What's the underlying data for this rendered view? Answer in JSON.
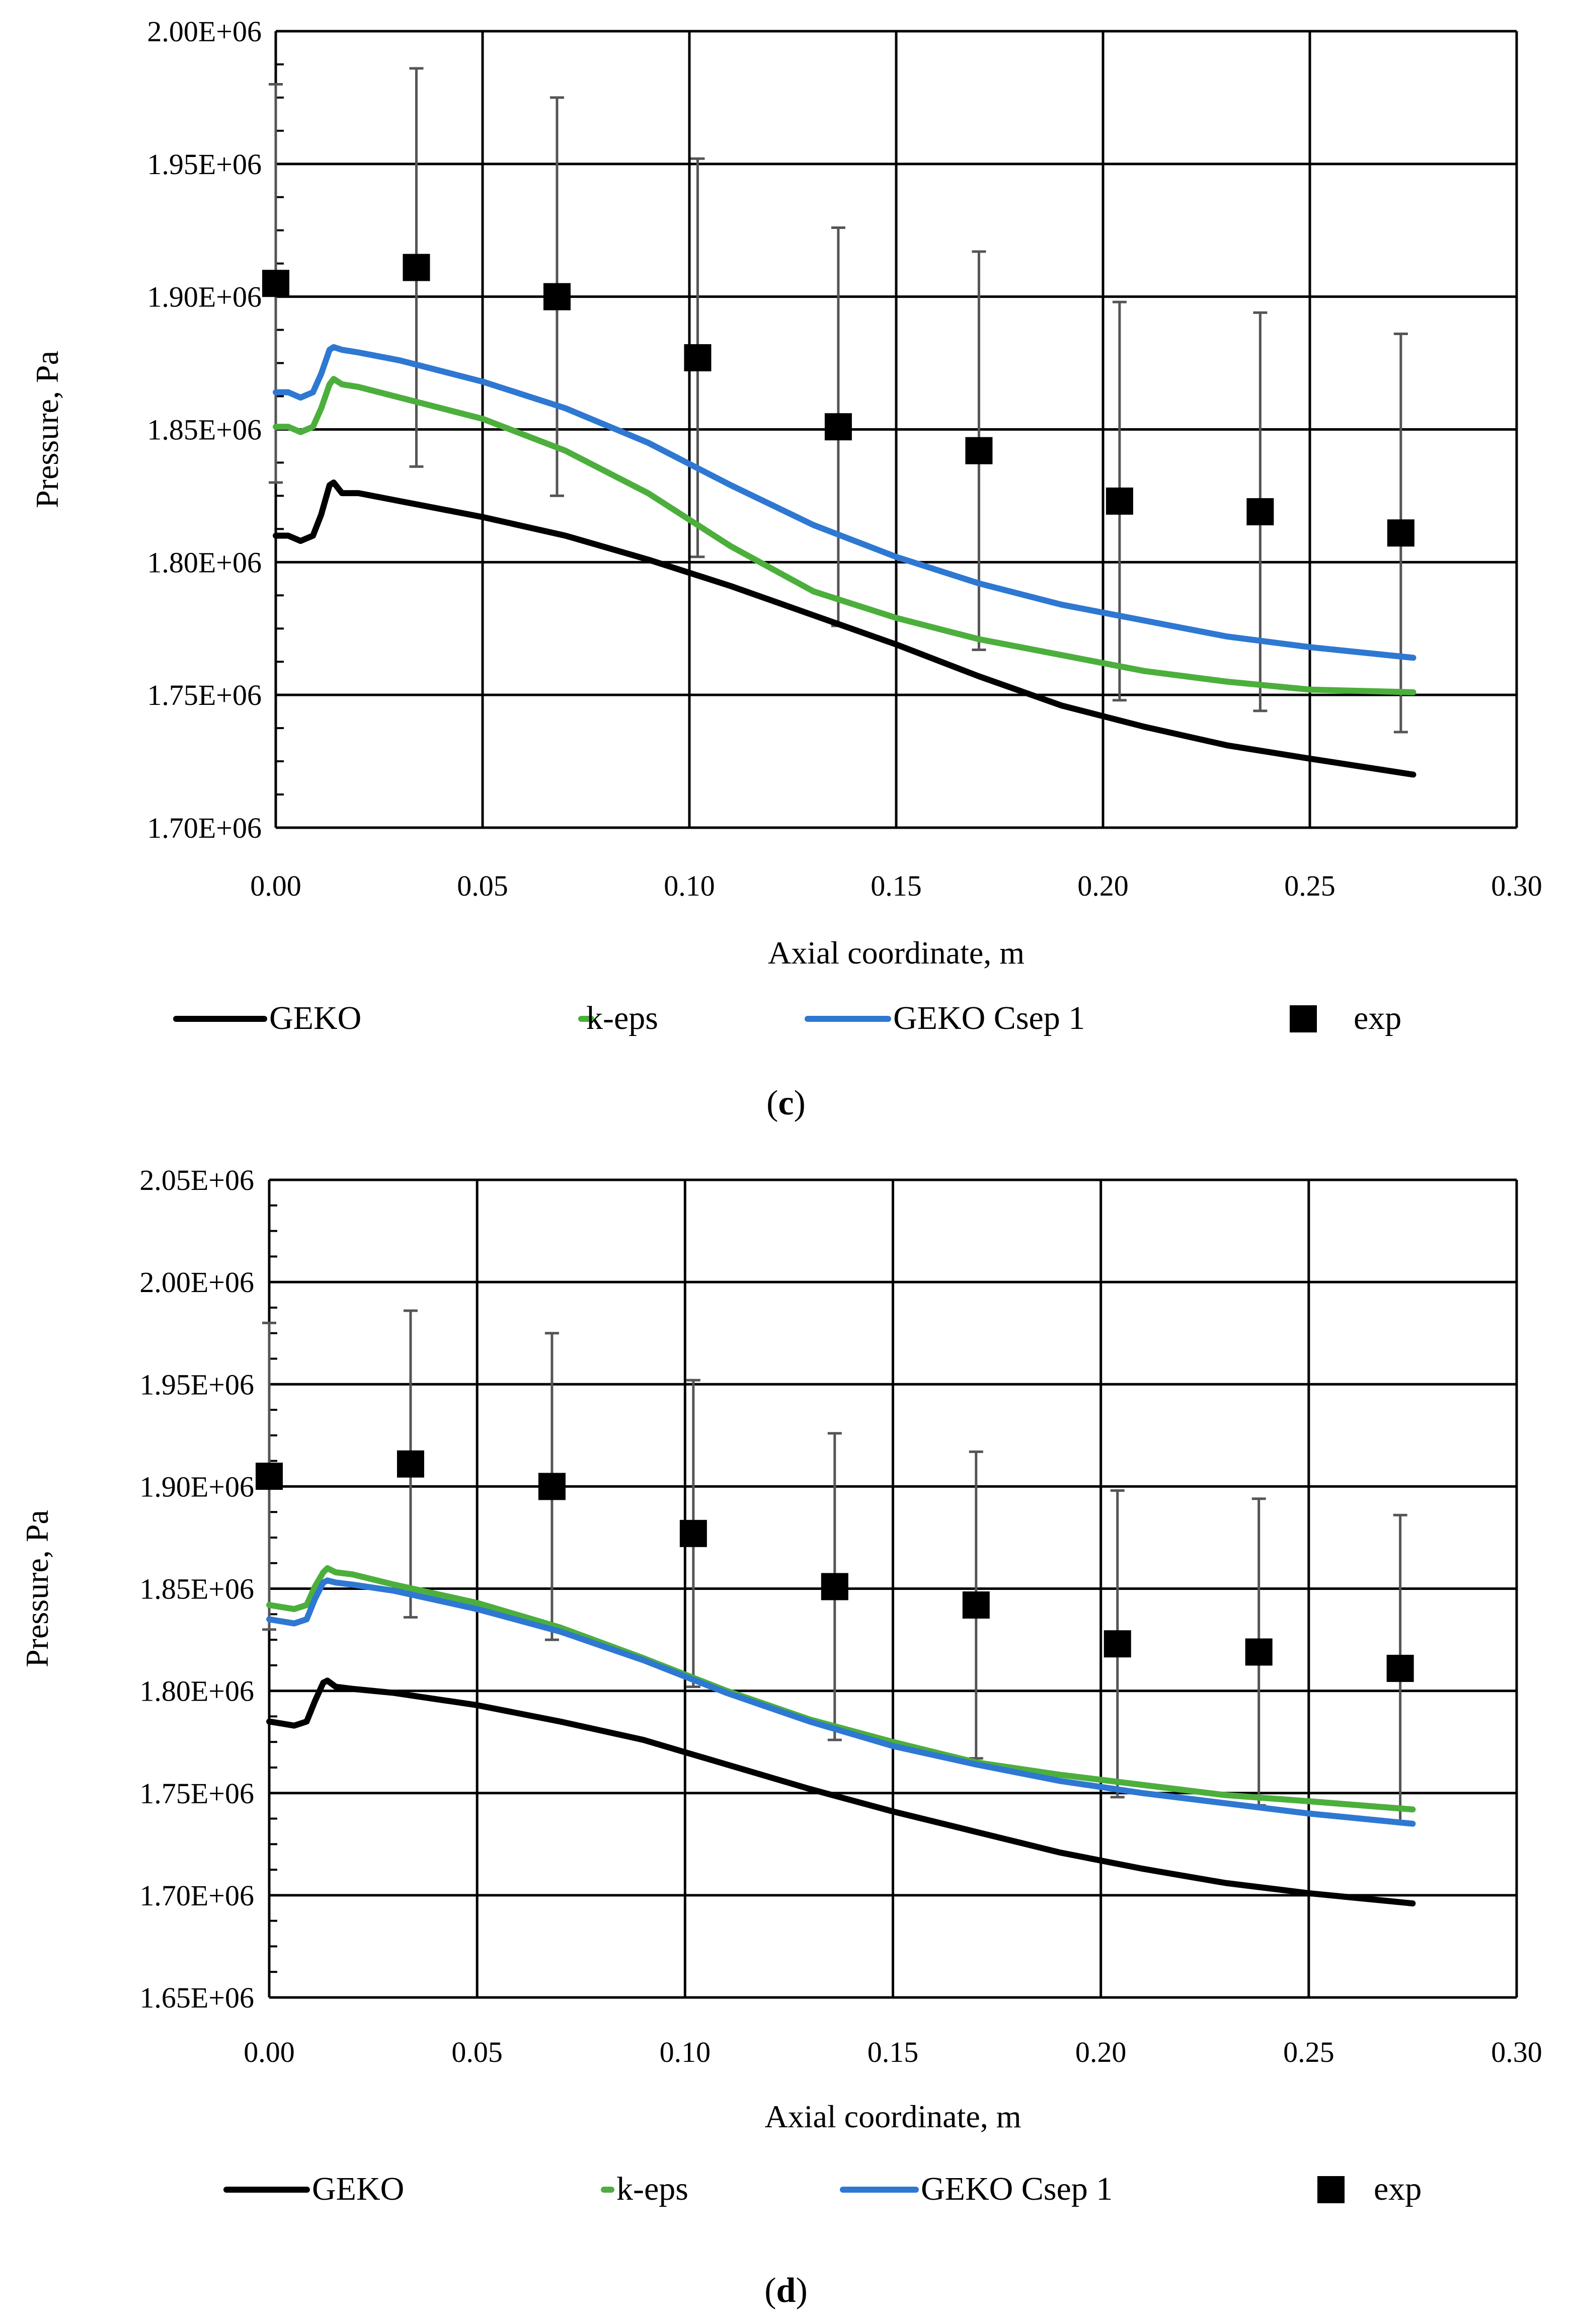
{
  "colors": {
    "geko": "#000000",
    "keps": "#4CAF3C",
    "csep": "#2E78D2",
    "exp": "#000000",
    "errorbar": "#555555",
    "grid": "#000000"
  },
  "panels": [
    {
      "caption_open": "(",
      "caption_letter": "c",
      "caption_close": ")",
      "legend": [
        "GEKO",
        "k-eps",
        "GEKO Csep 1",
        "exp"
      ]
    },
    {
      "caption_open": "(",
      "caption_letter": "d",
      "caption_close": ")",
      "legend": [
        "GEKO",
        "k-eps",
        "GEKO Csep 1",
        "exp"
      ]
    }
  ],
  "chart_data": [
    {
      "type": "line",
      "xlabel": "Axial coordinate, m",
      "ylabel": "Pressure, Pa",
      "xlim": [
        0,
        0.3
      ],
      "ylim": [
        1700000,
        2000000
      ],
      "x_ticks": [
        0,
        0.05,
        0.1,
        0.15,
        0.2,
        0.25,
        0.3
      ],
      "x_tick_labels": [
        "0.00",
        "0.05",
        "0.10",
        "0.15",
        "0.20",
        "0.25",
        "0.30"
      ],
      "y_ticks": [
        1700000,
        1750000,
        1800000,
        1850000,
        1900000,
        1950000,
        2000000
      ],
      "y_tick_labels": [
        "1.70E+06",
        "1.75E+06",
        "1.80E+06",
        "1.85E+06",
        "1.90E+06",
        "1.95E+06",
        "2.00E+06"
      ],
      "grid": true,
      "legend_position": "bottom",
      "series": [
        {
          "name": "GEKO",
          "kind": "line",
          "color_key": "geko",
          "x": [
            0,
            0.003,
            0.006,
            0.009,
            0.011,
            0.013,
            0.014,
            0.016,
            0.02,
            0.03,
            0.05,
            0.07,
            0.09,
            0.11,
            0.13,
            0.15,
            0.17,
            0.19,
            0.21,
            0.23,
            0.25,
            0.275
          ],
          "y": [
            1810000,
            1810000,
            1808000,
            1810000,
            1818000,
            1829000,
            1830000,
            1826000,
            1826000,
            1823000,
            1817000,
            1810000,
            1801000,
            1791000,
            1780000,
            1769000,
            1757000,
            1746000,
            1738000,
            1731000,
            1726000,
            1720000
          ]
        },
        {
          "name": "k-eps",
          "kind": "line",
          "color_key": "keps",
          "x": [
            0,
            0.003,
            0.006,
            0.009,
            0.011,
            0.013,
            0.014,
            0.016,
            0.02,
            0.03,
            0.05,
            0.07,
            0.09,
            0.11,
            0.13,
            0.15,
            0.17,
            0.19,
            0.21,
            0.23,
            0.25,
            0.275
          ],
          "y": [
            1851000,
            1851000,
            1849000,
            1851000,
            1858000,
            1867000,
            1869000,
            1867000,
            1866000,
            1862000,
            1854000,
            1842000,
            1826000,
            1806000,
            1789000,
            1779000,
            1771000,
            1765000,
            1759000,
            1755000,
            1752000,
            1751000
          ]
        },
        {
          "name": "GEKO Csep 1",
          "kind": "line",
          "color_key": "csep",
          "x": [
            0,
            0.003,
            0.006,
            0.009,
            0.011,
            0.013,
            0.014,
            0.016,
            0.02,
            0.03,
            0.05,
            0.07,
            0.09,
            0.11,
            0.13,
            0.15,
            0.17,
            0.19,
            0.21,
            0.23,
            0.25,
            0.275
          ],
          "y": [
            1864000,
            1864000,
            1862000,
            1864000,
            1871000,
            1880000,
            1881000,
            1880000,
            1879000,
            1876000,
            1868000,
            1858000,
            1845000,
            1829000,
            1814000,
            1802000,
            1792000,
            1784000,
            1778000,
            1772000,
            1768000,
            1764000
          ]
        },
        {
          "name": "exp",
          "kind": "scatter",
          "color_key": "exp",
          "x": [
            0,
            0.034,
            0.068,
            0.102,
            0.136,
            0.17,
            0.204,
            0.238,
            0.272
          ],
          "y": [
            1905000,
            1911000,
            1900000,
            1877000,
            1851000,
            1842000,
            1823000,
            1819000,
            1811000
          ],
          "err_low": [
            1830000,
            1836000,
            1825000,
            1802000,
            1776000,
            1767000,
            1748000,
            1744000,
            1736000
          ],
          "err_high": [
            1980000,
            1986000,
            1975000,
            1952000,
            1926000,
            1917000,
            1898000,
            1894000,
            1886000
          ]
        }
      ]
    },
    {
      "type": "line",
      "xlabel": "Axial coordinate, m",
      "ylabel": "Pressure, Pa",
      "xlim": [
        0,
        0.3
      ],
      "ylim": [
        1650000,
        2050000
      ],
      "x_ticks": [
        0,
        0.05,
        0.1,
        0.15,
        0.2,
        0.25,
        0.3
      ],
      "x_tick_labels": [
        "0.00",
        "0.05",
        "0.10",
        "0.15",
        "0.20",
        "0.25",
        "0.30"
      ],
      "y_ticks": [
        1650000,
        1700000,
        1750000,
        1800000,
        1850000,
        1900000,
        1950000,
        2000000,
        2050000
      ],
      "y_tick_labels": [
        "1.65E+06",
        "1.70E+06",
        "1.75E+06",
        "1.80E+06",
        "1.85E+06",
        "1.90E+06",
        "1.95E+06",
        "2.00E+06",
        "2.05E+06"
      ],
      "grid": true,
      "legend_position": "bottom",
      "series": [
        {
          "name": "GEKO",
          "kind": "line",
          "color_key": "geko",
          "x": [
            0,
            0.003,
            0.006,
            0.009,
            0.011,
            0.013,
            0.014,
            0.016,
            0.02,
            0.03,
            0.05,
            0.07,
            0.09,
            0.11,
            0.13,
            0.15,
            0.17,
            0.19,
            0.21,
            0.23,
            0.25,
            0.275
          ],
          "y": [
            1785000,
            1784000,
            1783000,
            1785000,
            1795000,
            1804000,
            1805000,
            1802000,
            1801000,
            1799000,
            1793000,
            1785000,
            1776000,
            1764000,
            1752000,
            1741000,
            1731000,
            1721000,
            1713000,
            1706000,
            1701000,
            1696000
          ]
        },
        {
          "name": "k-eps",
          "kind": "line",
          "color_key": "keps",
          "x": [
            0,
            0.003,
            0.006,
            0.009,
            0.011,
            0.013,
            0.014,
            0.016,
            0.02,
            0.03,
            0.05,
            0.07,
            0.09,
            0.11,
            0.13,
            0.15,
            0.17,
            0.19,
            0.21,
            0.23,
            0.25,
            0.275
          ],
          "y": [
            1842000,
            1841000,
            1840000,
            1842000,
            1851000,
            1858000,
            1860000,
            1858000,
            1857000,
            1852000,
            1843000,
            1831000,
            1816000,
            1800000,
            1786000,
            1775000,
            1765000,
            1759000,
            1754000,
            1749000,
            1746000,
            1742000
          ]
        },
        {
          "name": "GEKO Csep 1",
          "kind": "line",
          "color_key": "csep",
          "x": [
            0,
            0.003,
            0.006,
            0.009,
            0.011,
            0.013,
            0.014,
            0.016,
            0.02,
            0.03,
            0.05,
            0.07,
            0.09,
            0.11,
            0.13,
            0.15,
            0.17,
            0.19,
            0.21,
            0.23,
            0.25,
            0.275
          ],
          "y": [
            1835000,
            1834000,
            1833000,
            1835000,
            1845000,
            1853000,
            1854000,
            1853000,
            1852000,
            1849000,
            1840000,
            1829000,
            1815000,
            1799000,
            1785000,
            1773000,
            1764000,
            1756000,
            1750000,
            1745000,
            1740000,
            1735000
          ]
        },
        {
          "name": "exp",
          "kind": "scatter",
          "color_key": "exp",
          "x": [
            0,
            0.034,
            0.068,
            0.102,
            0.136,
            0.17,
            0.204,
            0.238,
            0.272
          ],
          "y": [
            1905000,
            1911000,
            1900000,
            1877000,
            1851000,
            1842000,
            1823000,
            1819000,
            1811000
          ],
          "err_low": [
            1830000,
            1836000,
            1825000,
            1802000,
            1776000,
            1767000,
            1748000,
            1744000,
            1736000
          ],
          "err_high": [
            1980000,
            1986000,
            1975000,
            1952000,
            1926000,
            1917000,
            1898000,
            1894000,
            1886000
          ]
        }
      ]
    }
  ]
}
